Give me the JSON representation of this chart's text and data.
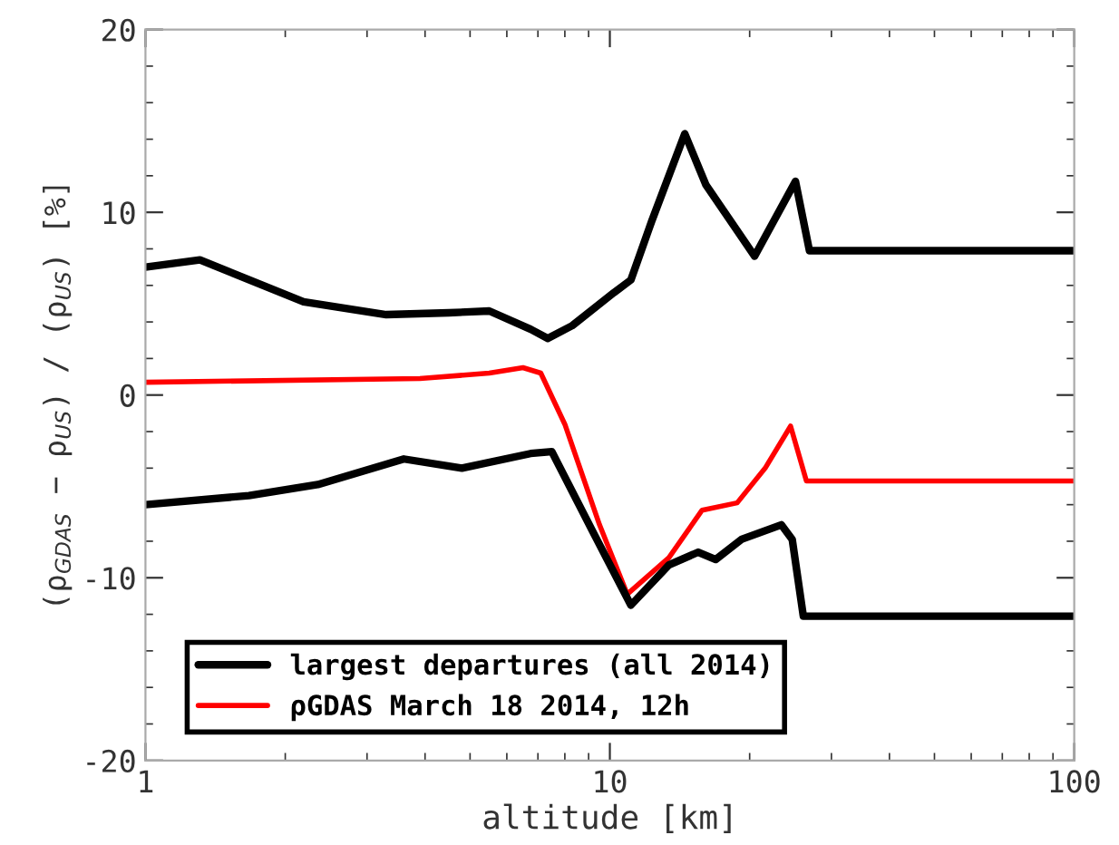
{
  "chart_data": {
    "type": "line",
    "xlabel": "altitude [km]",
    "ylabel": "(ρ$_{GDAS}$ − ρ$_{US}$) / (ρ$_{US}$) [%]",
    "log": "x",
    "xlim": [
      1,
      100
    ],
    "xticks": [
      1,
      10,
      100
    ],
    "ylim": [
      -20,
      20
    ],
    "yticks": [
      -20,
      -10,
      0,
      10,
      20
    ],
    "grid": false,
    "legend": "bottom left",
    "line_style": "solid",
    "series": [
      {
        "name": "largest departures (all 2014)",
        "color": "#000000",
        "x": [
          1,
          1.31,
          2.19,
          3.3,
          4.5,
          5.5,
          6.75,
          7.35,
          8.3,
          10.2,
          11.1,
          12.3,
          14.5,
          16.1,
          20.5,
          25.1,
          26.9,
          100
        ],
        "values": [
          7.0,
          7.4,
          5.1,
          4.4,
          4.5,
          4.6,
          3.6,
          3.1,
          3.8,
          5.6,
          6.3,
          9.5,
          14.3,
          11.5,
          7.6,
          11.7,
          7.9,
          7.9
        ]
      },
      {
        "name": "ρGDAS March 18 2014, 12h",
        "color": "#ff0000",
        "x": [
          1,
          3.9,
          5.5,
          6.5,
          7.1,
          8.0,
          9.5,
          10.9,
          13.4,
          15.8,
          18.8,
          21.6,
          24.5,
          26.5,
          100
        ],
        "values": [
          0.7,
          0.9,
          1.2,
          1.5,
          1.2,
          -1.6,
          -7.1,
          -10.9,
          -8.9,
          -6.3,
          -5.9,
          -4.0,
          -1.7,
          -4.7,
          -4.7
        ]
      },
      {
        "color": "#000000",
        "x": [
          1,
          1.67,
          2.35,
          3.6,
          4.8,
          6.75,
          7.5,
          9.2,
          11.1,
          13.4,
          15.5,
          16.9,
          19.2,
          23.4,
          24.7,
          26.1,
          100
        ],
        "values": [
          -6.0,
          -5.5,
          -4.9,
          -3.5,
          -4.0,
          -3.2,
          -3.1,
          -7.5,
          -11.5,
          -9.3,
          -8.6,
          -9.0,
          -7.9,
          -7.1,
          -7.9,
          -12.1,
          -12.1
        ]
      }
    ]
  }
}
